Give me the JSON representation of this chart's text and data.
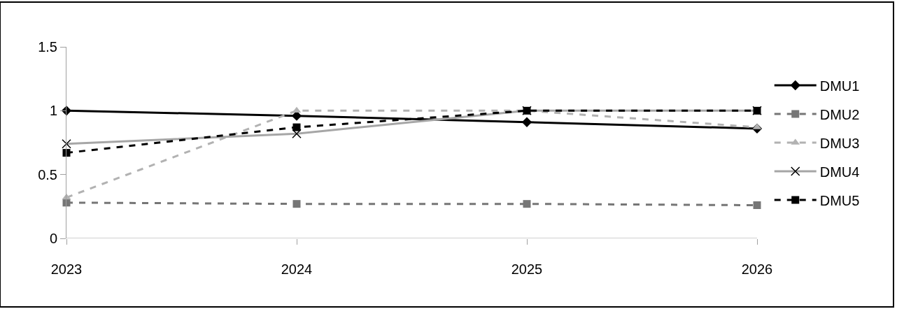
{
  "chart_data": {
    "type": "line",
    "categories": [
      "2023",
      "2024",
      "2025",
      "2026"
    ],
    "ylim": [
      0,
      1.5
    ],
    "yticks": [
      0,
      0.5,
      1,
      1.5
    ],
    "legend": "right",
    "series": [
      {
        "name": "DMU1",
        "color": "#000000",
        "marker": "diamond",
        "line_style": "solid",
        "values": [
          1.0,
          0.96,
          0.91,
          0.86
        ]
      },
      {
        "name": "DMU2",
        "color": "#767676",
        "marker": "square",
        "line_style": "dashed",
        "values": [
          0.28,
          0.27,
          0.27,
          0.26
        ]
      },
      {
        "name": "DMU3",
        "color": "#b2b2b2",
        "marker": "triangle",
        "line_style": "dashed",
        "values": [
          0.32,
          1.0,
          1.0,
          0.87
        ]
      },
      {
        "name": "DMU4",
        "color": "#a6a6a6",
        "marker": "cross",
        "line_style": "solid",
        "values": [
          0.74,
          0.82,
          1.0,
          1.0
        ]
      },
      {
        "name": "DMU5",
        "color": "#000000",
        "marker": "square",
        "line_style": "dashed",
        "values": [
          0.67,
          0.87,
          1.0,
          1.0
        ]
      }
    ]
  }
}
